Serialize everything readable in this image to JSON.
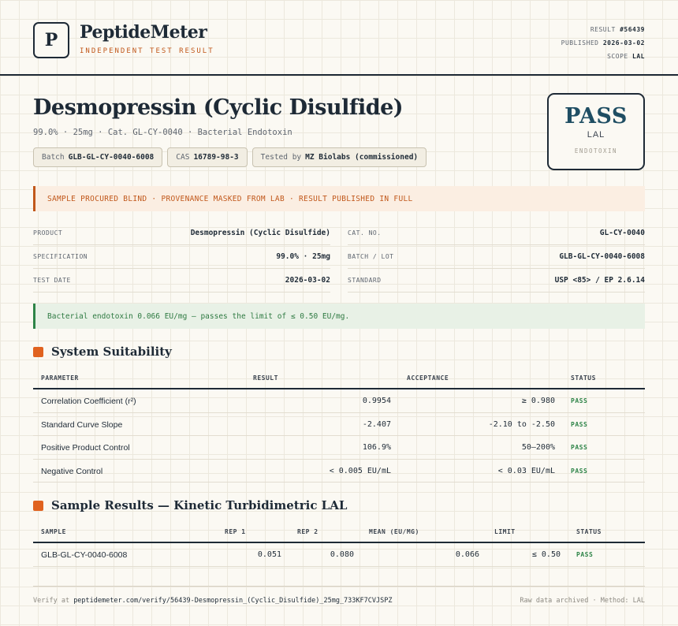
{
  "header": {
    "logo_letter": "P",
    "brand": "PeptideMeter",
    "tagline": "INDEPENDENT TEST RESULT",
    "meta": {
      "result_label": "RESULT",
      "result_value": "#56439",
      "published_label": "PUBLISHED",
      "published_value": "2026-03-02",
      "scope_label": "SCOPE",
      "scope_value": "LAL"
    }
  },
  "title": "Desmopressin (Cyclic Disulfide)",
  "subtitle": "99.0% · 25mg · Cat. GL-CY-0040 · Bacterial Endotoxin",
  "chips": [
    {
      "label": "Batch",
      "value": "GLB-GL-CY-0040-6008"
    },
    {
      "label": "CAS",
      "value": "16789-98-3"
    },
    {
      "label": "Tested by",
      "value": "MZ Biolabs (commissioned)"
    }
  ],
  "stamp": {
    "verdict": "PASS",
    "method": "LAL",
    "category": "ENDOTOXIN"
  },
  "notice": "SAMPLE PROCURED BLIND · PROVENANCE MASKED FROM LAB · RESULT PUBLISHED IN FULL",
  "info": {
    "left": [
      {
        "label": "PRODUCT",
        "value": "Desmopressin (Cyclic Disulfide)"
      },
      {
        "label": "SPECIFICATION",
        "value": "99.0% · 25mg"
      },
      {
        "label": "TEST DATE",
        "value": "2026-03-02"
      }
    ],
    "right": [
      {
        "label": "CAT. NO.",
        "value": "GL-CY-0040"
      },
      {
        "label": "BATCH / LOT",
        "value": "GLB-GL-CY-0040-6008"
      },
      {
        "label": "STANDARD",
        "value": "USP <85> / EP 2.6.14"
      }
    ]
  },
  "result_summary": "Bacterial endotoxin 0.066 EU/mg — passes the limit of ≤ 0.50 EU/mg.",
  "suitability": {
    "title": "System Suitability",
    "columns": [
      "PARAMETER",
      "RESULT",
      "ACCEPTANCE",
      "STATUS"
    ],
    "rows": [
      {
        "parameter": "Correlation Coefficient (r²)",
        "result": "0.9954",
        "acceptance": "≥ 0.980",
        "status": "PASS"
      },
      {
        "parameter": "Standard Curve Slope",
        "result": "-2.407",
        "acceptance": "-2.10 to -2.50",
        "status": "PASS"
      },
      {
        "parameter": "Positive Product Control",
        "result": "106.9%",
        "acceptance": "50–200%",
        "status": "PASS"
      },
      {
        "parameter": "Negative Control",
        "result": "< 0.005 EU/mL",
        "acceptance": "< 0.03 EU/mL",
        "status": "PASS"
      }
    ]
  },
  "samples": {
    "title": "Sample Results — Kinetic Turbidimetric LAL",
    "columns": [
      "SAMPLE",
      "REP 1",
      "REP 2",
      "MEAN (EU/MG)",
      "LIMIT",
      "STATUS"
    ],
    "rows": [
      {
        "sample": "GLB-GL-CY-0040-6008",
        "rep1": "0.051",
        "rep2": "0.080",
        "mean": "0.066",
        "limit": "≤ 0.50",
        "status": "PASS"
      }
    ]
  },
  "footer": {
    "verify_prefix": "Verify at",
    "verify_url": "peptidemeter.com/verify/56439-Desmopressin_(Cyclic_Disulfide)_25mg_733KF7CVJSPZ",
    "raw_note": "Raw data archived · Method: LAL"
  }
}
